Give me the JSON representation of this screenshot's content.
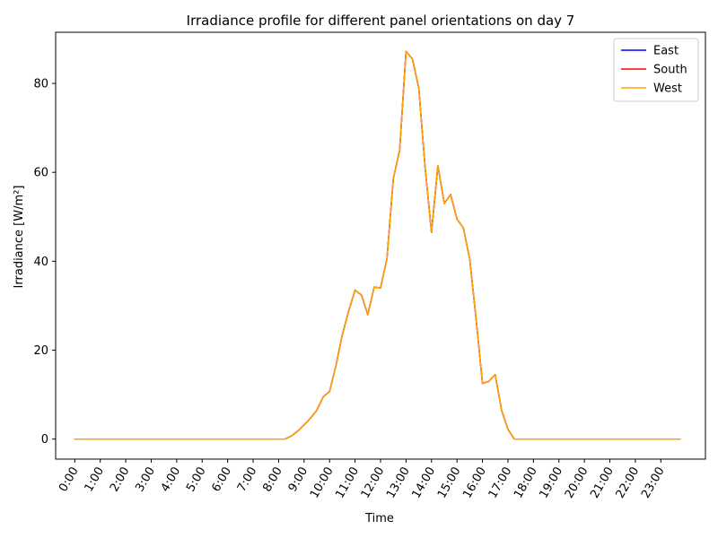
{
  "chart_data": {
    "type": "line",
    "title": "Irradiance profile for different panel orientations on day 7",
    "xlabel": "Time",
    "ylabel": "Irradiance [W/m²]",
    "x_tick_labels": [
      "0:00",
      "1:00",
      "2:00",
      "3:00",
      "4:00",
      "5:00",
      "6:00",
      "7:00",
      "8:00",
      "9:00",
      "10:00",
      "11:00",
      "12:00",
      "13:00",
      "14:00",
      "15:00",
      "16:00",
      "17:00",
      "18:00",
      "19:00",
      "20:00",
      "21:00",
      "22:00",
      "23:00"
    ],
    "y_ticks": [
      0,
      20,
      40,
      60,
      80
    ],
    "xlim": [
      -0.75,
      24.75
    ],
    "ylim": [
      -4.5,
      91.5
    ],
    "grid": false,
    "legend_position": "top-right",
    "x_hours": [
      0,
      0.25,
      0.5,
      0.75,
      1,
      1.25,
      1.5,
      1.75,
      2,
      2.25,
      2.5,
      2.75,
      3,
      3.25,
      3.5,
      3.75,
      4,
      4.25,
      4.5,
      4.75,
      5,
      5.25,
      5.5,
      5.75,
      6,
      6.25,
      6.5,
      6.75,
      7,
      7.25,
      7.5,
      7.75,
      8,
      8.25,
      8.5,
      8.75,
      9,
      9.25,
      9.5,
      9.75,
      10,
      10.25,
      10.5,
      10.75,
      11,
      11.25,
      11.5,
      11.75,
      12,
      12.25,
      12.5,
      12.75,
      13,
      13.25,
      13.5,
      13.75,
      14,
      14.25,
      14.5,
      14.75,
      15,
      15.25,
      15.5,
      15.75,
      16,
      16.25,
      16.5,
      16.75,
      17,
      17.25,
      17.5,
      17.75,
      18,
      18.25,
      18.5,
      18.75,
      19,
      19.25,
      19.5,
      19.75,
      20,
      20.25,
      20.5,
      20.75,
      21,
      21.25,
      21.5,
      21.75,
      22,
      22.25,
      22.5,
      22.75,
      23,
      23.25,
      23.5,
      23.75
    ],
    "series": [
      {
        "name": "East",
        "color": "#0000ff",
        "values": [
          0,
          0,
          0,
          0,
          0,
          0,
          0,
          0,
          0,
          0,
          0,
          0,
          0,
          0,
          0,
          0,
          0,
          0,
          0,
          0,
          0,
          0,
          0,
          0,
          0,
          0,
          0,
          0,
          0,
          0,
          0,
          0,
          0,
          0,
          0.7,
          1.8,
          3.2,
          4.7,
          6.5,
          9.5,
          10.7,
          16.5,
          23.5,
          28.8,
          33.5,
          32.4,
          28.0,
          34.2,
          34.0,
          40.5,
          58.5,
          65.0,
          87.2,
          85.5,
          79.0,
          61.0,
          46.5,
          61.5,
          53.0,
          55.0,
          49.5,
          47.5,
          40.5,
          27.0,
          12.5,
          13.0,
          14.5,
          6.5,
          2.2,
          0,
          0,
          0,
          0,
          0,
          0,
          0,
          0,
          0,
          0,
          0,
          0,
          0,
          0,
          0,
          0,
          0,
          0,
          0,
          0,
          0,
          0,
          0,
          0,
          0,
          0,
          0
        ]
      },
      {
        "name": "South",
        "color": "#ff0000",
        "values": [
          0,
          0,
          0,
          0,
          0,
          0,
          0,
          0,
          0,
          0,
          0,
          0,
          0,
          0,
          0,
          0,
          0,
          0,
          0,
          0,
          0,
          0,
          0,
          0,
          0,
          0,
          0,
          0,
          0,
          0,
          0,
          0,
          0,
          0,
          0.7,
          1.8,
          3.2,
          4.7,
          6.5,
          9.5,
          10.7,
          16.5,
          23.5,
          28.8,
          33.5,
          32.4,
          28.0,
          34.2,
          34.0,
          40.5,
          58.5,
          65.0,
          87.2,
          85.5,
          79.0,
          61.0,
          46.5,
          61.5,
          53.0,
          55.0,
          49.5,
          47.5,
          40.5,
          27.0,
          12.5,
          13.0,
          14.5,
          6.5,
          2.2,
          0,
          0,
          0,
          0,
          0,
          0,
          0,
          0,
          0,
          0,
          0,
          0,
          0,
          0,
          0,
          0,
          0,
          0,
          0,
          0,
          0,
          0,
          0,
          0,
          0,
          0,
          0
        ]
      },
      {
        "name": "West",
        "color": "#ffa500",
        "values": [
          0,
          0,
          0,
          0,
          0,
          0,
          0,
          0,
          0,
          0,
          0,
          0,
          0,
          0,
          0,
          0,
          0,
          0,
          0,
          0,
          0,
          0,
          0,
          0,
          0,
          0,
          0,
          0,
          0,
          0,
          0,
          0,
          0,
          0,
          0.7,
          1.8,
          3.2,
          4.7,
          6.5,
          9.5,
          10.7,
          16.5,
          23.5,
          28.8,
          33.5,
          32.4,
          28.0,
          34.2,
          34.0,
          40.5,
          58.5,
          65.0,
          87.2,
          85.5,
          79.0,
          61.0,
          46.5,
          61.5,
          53.0,
          55.0,
          49.5,
          47.5,
          40.5,
          27.0,
          12.5,
          13.0,
          14.5,
          6.5,
          2.2,
          0,
          0,
          0,
          0,
          0,
          0,
          0,
          0,
          0,
          0,
          0,
          0,
          0,
          0,
          0,
          0,
          0,
          0,
          0,
          0,
          0,
          0,
          0,
          0,
          0,
          0,
          0
        ]
      }
    ]
  }
}
